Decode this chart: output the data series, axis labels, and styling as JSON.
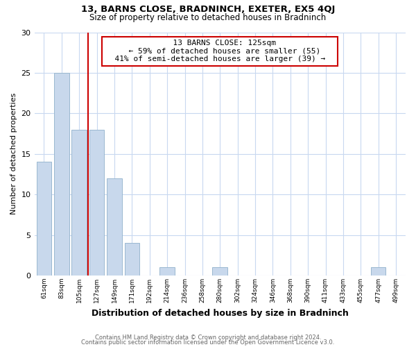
{
  "title": "13, BARNS CLOSE, BRADNINCH, EXETER, EX5 4QJ",
  "subtitle": "Size of property relative to detached houses in Bradninch",
  "xlabel": "Distribution of detached houses by size in Bradninch",
  "ylabel": "Number of detached properties",
  "bar_labels": [
    "61sqm",
    "83sqm",
    "105sqm",
    "127sqm",
    "149sqm",
    "171sqm",
    "192sqm",
    "214sqm",
    "236sqm",
    "258sqm",
    "280sqm",
    "302sqm",
    "324sqm",
    "346sqm",
    "368sqm",
    "390sqm",
    "411sqm",
    "433sqm",
    "455sqm",
    "477sqm",
    "499sqm"
  ],
  "bar_values": [
    14,
    25,
    18,
    18,
    12,
    4,
    0,
    1,
    0,
    0,
    1,
    0,
    0,
    0,
    0,
    0,
    0,
    0,
    0,
    1,
    0
  ],
  "bar_color": "#c8d8ec",
  "bar_edge_color": "#9ab8d0",
  "vline_x": 3,
  "vline_color": "#cc0000",
  "ylim": [
    0,
    30
  ],
  "yticks": [
    0,
    5,
    10,
    15,
    20,
    25,
    30
  ],
  "annotation_title": "13 BARNS CLOSE: 125sqm",
  "annotation_line1": "← 59% of detached houses are smaller (55)",
  "annotation_line2": "41% of semi-detached houses are larger (39) →",
  "annotation_box_color": "#ffffff",
  "annotation_box_edge": "#cc0000",
  "footer1": "Contains HM Land Registry data © Crown copyright and database right 2024.",
  "footer2": "Contains public sector information licensed under the Open Government Licence v3.0.",
  "bg_color": "#ffffff",
  "grid_color": "#c8d8f0"
}
